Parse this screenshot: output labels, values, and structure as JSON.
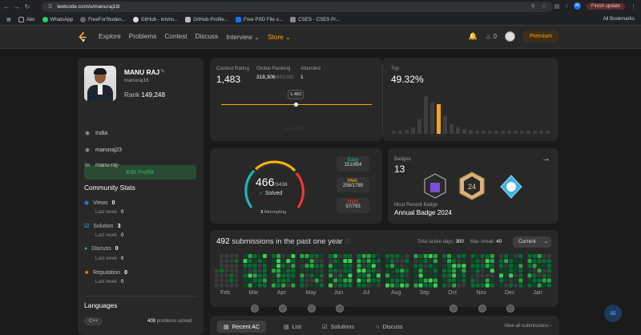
{
  "browser": {
    "url": "leetcode.com/u/manuraj18/",
    "profile_initial": "M",
    "update_label": "Finish update",
    "bookmarks": [
      "Abc",
      "WhatsApp",
      "FreeForStuden...",
      "GitHub - krishn...",
      "GitHub Profile...",
      "Free PSD File o...",
      "CSES - CSES Pr..."
    ],
    "all_bookmarks": "All Bookmarks"
  },
  "nav": {
    "links": [
      "Explore",
      "Problems",
      "Contest",
      "Discuss",
      "Interview ⌄",
      "Store ⌄"
    ],
    "fire_count": "0",
    "premium": "Premium"
  },
  "profile": {
    "name": "MANU RAJ",
    "username": "manuraj18",
    "rank_label": "Rank",
    "rank": "149,248",
    "edit_label": "Edit Profile",
    "location": "India",
    "github": "manuraj23",
    "linkedin": "manu-raj-"
  },
  "community": {
    "title": "Community Stats",
    "views_label": "Views",
    "views": "0",
    "solution_label": "Solution",
    "solution": "3",
    "discuss_label": "Discuss",
    "discuss": "0",
    "reputation_label": "Reputation",
    "reputation": "0",
    "lastweek": "Last week",
    "views_lw": "0",
    "solution_lw": "0",
    "discuss_lw": "0",
    "reputation_lw": "0"
  },
  "languages": {
    "title": "Languages",
    "lang": "C++",
    "count": "409",
    "count_suffix": "problems solved"
  },
  "contest": {
    "rating_label": "Contest Rating",
    "rating": "1,483",
    "global_label": "Global Ranking",
    "global": "318,306",
    "global_total": "/663,032",
    "attended_label": "Attended",
    "attended": "1",
    "tooltip": "1,483",
    "axis_date": "Dec 2023",
    "top_label": "Top",
    "top_value": "49.32%"
  },
  "progress": {
    "solved": "466",
    "total": "/3436",
    "solved_label": "Solved",
    "attempting": "3",
    "attempting_label": "Attempting",
    "easy_label": "Easy",
    "easy": "151/854",
    "med_label": "Med.",
    "med": "258/1789",
    "hard_label": "Hard",
    "hard": "57/793",
    "colors": {
      "easy": "#1cbaba",
      "medium": "#ffb700",
      "hard": "#f63737"
    }
  },
  "badges": {
    "label": "Badges",
    "count": "13",
    "recent_label": "Most Recent Badge",
    "recent": "Annual Badge 2024"
  },
  "submissions": {
    "count": "492",
    "text": "submissions in the past one year",
    "active_label": "Total active days:",
    "active": "300",
    "streak_label": "Max streak:",
    "streak": "40",
    "current": "Current",
    "months": [
      "Feb",
      "Mar",
      "Apr",
      "May",
      "Jun",
      "Jul",
      "Aug",
      "Sep",
      "Oct",
      "Nov",
      "Dec",
      "Jan"
    ]
  },
  "tabs": {
    "items": [
      "Recent AC",
      "List",
      "Solutions",
      "Discuss"
    ],
    "view_all": "View all submissions"
  }
}
